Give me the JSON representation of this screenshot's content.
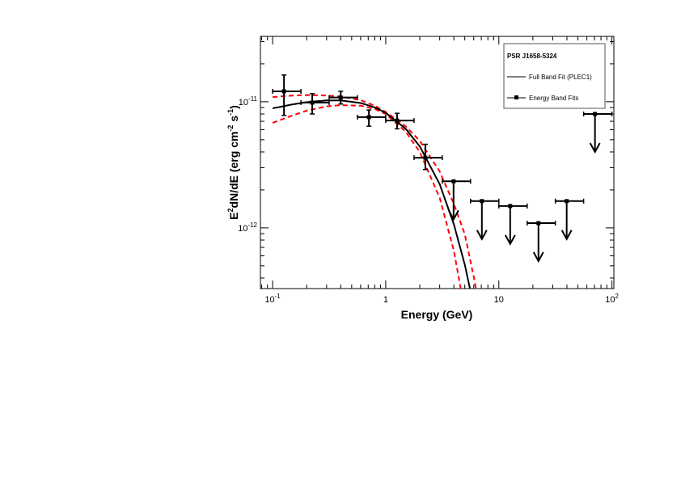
{
  "chart_data": {
    "type": "scatter",
    "title": "",
    "xlabel": "Energy (GeV)",
    "ylabel": {
      "base": "E",
      "sup1": "2",
      "mid": "dN/dE (erg cm",
      "sup2": "-2",
      "mid2": " s",
      "sup3": "-1",
      "end": ")"
    },
    "xscale": "log",
    "yscale": "log",
    "xlim": [
      0.078,
      104
    ],
    "ylim": [
      3.3e-13,
      3.3e-11
    ],
    "grid": false,
    "x_ticks": [
      {
        "value": 0.1,
        "base": "10",
        "exp": "-1"
      },
      {
        "value": 1,
        "base": "1",
        "exp": ""
      },
      {
        "value": 10,
        "base": "10",
        "exp": ""
      },
      {
        "value": 100,
        "base": "10",
        "exp": "2"
      }
    ],
    "y_ticks": [
      {
        "value": 1e-11,
        "base": "10",
        "exp": "-11"
      },
      {
        "value": 1e-12,
        "base": "10",
        "exp": "-12"
      }
    ],
    "legend": {
      "placement": "top-right",
      "title": "PSR J1658-5324",
      "entries": [
        "Full Band Fit (PLEC1)",
        "Energy Band Fits"
      ]
    },
    "points": [
      {
        "e": 0.126,
        "e_lo": 0.1,
        "e_hi": 0.178,
        "f": 1.21e-11,
        "f_lo": 7.8e-12,
        "f_hi": 1.63e-11,
        "upper_limit": false
      },
      {
        "e": 0.224,
        "e_lo": 0.178,
        "e_hi": 0.316,
        "f": 9.85e-12,
        "f_lo": 8e-12,
        "f_hi": 1.16e-11,
        "upper_limit": false
      },
      {
        "e": 0.4,
        "e_lo": 0.316,
        "e_hi": 0.562,
        "f": 1.08e-11,
        "f_lo": 9.6e-12,
        "f_hi": 1.21e-11,
        "upper_limit": false
      },
      {
        "e": 0.71,
        "e_lo": 0.562,
        "e_hi": 1.0,
        "f": 7.55e-12,
        "f_lo": 6.4e-12,
        "f_hi": 8.6e-12,
        "upper_limit": false
      },
      {
        "e": 1.26,
        "e_lo": 1.0,
        "e_hi": 1.78,
        "f": 7.1e-12,
        "f_lo": 6.1e-12,
        "f_hi": 8.1e-12,
        "upper_limit": false
      },
      {
        "e": 2.24,
        "e_lo": 1.78,
        "e_hi": 3.16,
        "f": 3.6e-12,
        "f_lo": 2.9e-12,
        "f_hi": 4.6e-12,
        "upper_limit": false
      },
      {
        "e": 3.98,
        "e_lo": 3.16,
        "e_hi": 5.62,
        "f": 2.34e-12,
        "upper_limit": true
      },
      {
        "e": 7.08,
        "e_lo": 5.62,
        "e_hi": 10.0,
        "f": 1.63e-12,
        "upper_limit": true
      },
      {
        "e": 12.6,
        "e_lo": 10.0,
        "e_hi": 17.8,
        "f": 1.49e-12,
        "upper_limit": true
      },
      {
        "e": 22.4,
        "e_lo": 17.8,
        "e_hi": 31.6,
        "f": 1.09e-12,
        "upper_limit": true
      },
      {
        "e": 39.8,
        "e_lo": 31.6,
        "e_hi": 56.2,
        "f": 1.63e-12,
        "upper_limit": true
      },
      {
        "e": 70.8,
        "e_lo": 56.2,
        "e_hi": 100,
        "f": 8e-12,
        "upper_limit": true
      }
    ],
    "fit_curve": {
      "name": "Full Band Fit (PLEC1)",
      "e": [
        0.1,
        0.15,
        0.2,
        0.3,
        0.4,
        0.6,
        0.8,
        1,
        1.5,
        2,
        3,
        4,
        5,
        6,
        7
      ],
      "f": [
        8.87e-12,
        9.53e-12,
        9.92e-12,
        1.025e-11,
        1.025e-11,
        9.77e-12,
        9.02e-12,
        8.16e-12,
        6.11e-12,
        4.43e-12,
        2.22e-12,
        1.07e-12,
        5.1e-13,
        2.4e-13,
        1e-13
      ]
    },
    "band_upper": {
      "e": [
        0.1,
        0.15,
        0.2,
        0.3,
        0.4,
        0.6,
        0.8,
        1,
        1.5,
        2,
        3,
        4,
        5,
        6,
        7
      ],
      "f": [
        1.09e-11,
        1.12e-11,
        1.13e-11,
        1.12e-11,
        1.1e-11,
        1.03e-11,
        9.3e-12,
        8.3e-12,
        6.4e-12,
        4.9e-12,
        2.8e-12,
        1.55e-12,
        8.9e-13,
        4.1e-13,
        1.9e-13
      ]
    },
    "band_lower": {
      "e": [
        0.1,
        0.15,
        0.2,
        0.3,
        0.4,
        0.6,
        0.8,
        1,
        1.5,
        2,
        3,
        4,
        4.6,
        5
      ],
      "f": [
        6.8e-12,
        7.8e-12,
        8.5e-12,
        9.2e-12,
        9.4e-12,
        9.3e-12,
        8.75e-12,
        8e-12,
        5.8e-12,
        4e-12,
        1.73e-12,
        6.6e-13,
        3.3e-13,
        2.3e-13
      ]
    },
    "colors": {
      "data": "#000000",
      "fit": "#000000",
      "band": "#ff0000"
    }
  }
}
